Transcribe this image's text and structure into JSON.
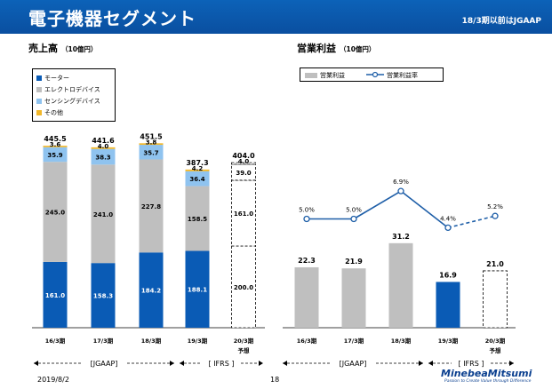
{
  "header": {
    "title": "電子機器セグメント",
    "note": "18/3期以前はJGAAP"
  },
  "sales": {
    "title": "売上高",
    "unit": "（10億円）",
    "legend": [
      "モーター",
      "エレクトロデバイス",
      "センシングデバイス",
      "その他"
    ],
    "forecast_label": "予想"
  },
  "profit": {
    "title": "営業利益",
    "unit": "（10億円）",
    "legend": [
      "営業利益",
      "営業利益率"
    ],
    "forecast_label": "予想"
  },
  "periods": {
    "jgaap": "[JGAAP]",
    "ifrs": "[ IFRS ]"
  },
  "colors": {
    "motor": "#0a5bb5",
    "electro": "#bfbfbf",
    "sensing": "#8fc3ef",
    "other": "#f2b82b",
    "line": "#1f5fa8"
  },
  "chart_data": [
    {
      "type": "bar",
      "title": "売上高",
      "categories": [
        "16/3期",
        "17/3期",
        "18/3期",
        "19/3期",
        "20/3期"
      ],
      "series": [
        {
          "name": "モーター",
          "values": [
            161.0,
            158.3,
            184.2,
            188.1,
            200.0
          ],
          "labels": [
            "161.0",
            "158.3",
            "184.2",
            "188.1",
            "200.0"
          ]
        },
        {
          "name": "エレクトロデバイス",
          "values": [
            245.0,
            241.0,
            227.8,
            158.5,
            161.0
          ],
          "labels": [
            "245.0",
            "241.0",
            "227.8",
            "158.5",
            "161.0"
          ]
        },
        {
          "name": "センシングデバイス",
          "values": [
            35.9,
            38.3,
            35.7,
            36.4,
            39.0
          ],
          "labels": [
            "35.9",
            "38.3",
            "35.7",
            "36.4",
            "39.0"
          ]
        },
        {
          "name": "その他",
          "values": [
            3.6,
            4.0,
            3.8,
            4.2,
            4.0
          ],
          "labels": [
            "3.6",
            "4.0",
            "3.8",
            "4.2",
            "4.0"
          ]
        }
      ],
      "totals": [
        445.5,
        441.6,
        451.5,
        387.3,
        404.0
      ],
      "total_labels": [
        "445.5",
        "441.6",
        "451.5",
        "387.3",
        "404.0"
      ],
      "forecast_index": 4,
      "ylim": [
        0,
        480
      ]
    },
    {
      "type": "bar",
      "title": "営業利益",
      "categories": [
        "16/3期",
        "17/3期",
        "18/3期",
        "19/3期",
        "20/3期"
      ],
      "series": [
        {
          "name": "営業利益",
          "values": [
            22.3,
            21.9,
            31.2,
            16.9,
            21.0
          ],
          "labels": [
            "22.3",
            "21.9",
            "31.2",
            "16.9",
            "21.0"
          ]
        },
        {
          "name": "営業利益率",
          "values": [
            5.0,
            5.0,
            6.9,
            4.4,
            5.2
          ],
          "labels": [
            "5.0%",
            "5.0%",
            "6.9%",
            "4.4%",
            "5.2%"
          ]
        }
      ],
      "forecast_index": 4,
      "ylim": [
        0,
        48
      ]
    }
  ],
  "footer": {
    "date": "2019/8/2",
    "page": "18",
    "logo": "MinebeaMitsumi",
    "tagline": "Passion to Create Value through Difference"
  }
}
